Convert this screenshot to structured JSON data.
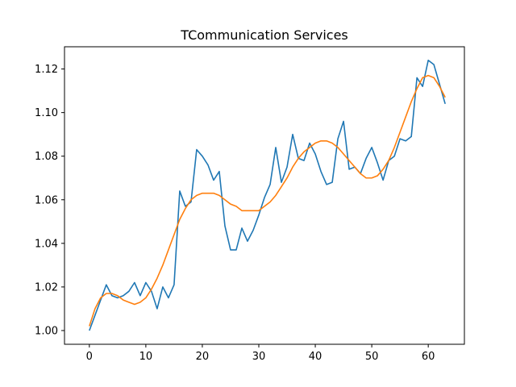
{
  "chart_data": {
    "type": "line",
    "title": "TCommunication Services",
    "xlabel": "",
    "ylabel": "",
    "xlim": [
      -4.4,
      66.4
    ],
    "ylim": [
      0.9937,
      1.1302
    ],
    "x_ticks": [
      0,
      10,
      20,
      30,
      40,
      50,
      60
    ],
    "y_ticks": [
      1.0,
      1.02,
      1.04,
      1.06,
      1.08,
      1.1,
      1.12
    ],
    "y_tick_labels": [
      "1.00",
      "1.02",
      "1.04",
      "1.06",
      "1.08",
      "1.10",
      "1.12"
    ],
    "grid": false,
    "series": [
      {
        "color": "#1f77b4",
        "x": [
          0,
          1,
          2,
          3,
          4,
          5,
          6,
          7,
          8,
          9,
          10,
          11,
          12,
          13,
          14,
          15,
          16,
          17,
          18,
          19,
          20,
          21,
          22,
          23,
          24,
          25,
          26,
          27,
          28,
          29,
          30,
          31,
          32,
          33,
          34,
          35,
          36,
          37,
          38,
          39,
          40,
          41,
          42,
          43,
          44,
          45,
          46,
          47,
          48,
          49,
          50,
          51,
          52,
          53,
          54,
          55,
          56,
          57,
          58,
          59,
          60,
          61,
          62,
          63
        ],
        "values": [
          1.0,
          1.007,
          1.014,
          1.021,
          1.016,
          1.015,
          1.016,
          1.018,
          1.022,
          1.016,
          1.022,
          1.018,
          1.01,
          1.02,
          1.015,
          1.021,
          1.064,
          1.057,
          1.059,
          1.083,
          1.08,
          1.076,
          1.069,
          1.073,
          1.048,
          1.037,
          1.037,
          1.047,
          1.041,
          1.046,
          1.053,
          1.061,
          1.067,
          1.084,
          1.068,
          1.075,
          1.09,
          1.079,
          1.078,
          1.086,
          1.081,
          1.073,
          1.067,
          1.068,
          1.088,
          1.096,
          1.074,
          1.075,
          1.072,
          1.079,
          1.084,
          1.077,
          1.069,
          1.078,
          1.08,
          1.088,
          1.087,
          1.089,
          1.116,
          1.112,
          1.124,
          1.122,
          1.113,
          1.104
        ]
      },
      {
        "color": "#ff7f0e",
        "x": [
          0,
          1,
          2,
          3,
          4,
          5,
          6,
          7,
          8,
          9,
          10,
          11,
          12,
          13,
          14,
          15,
          16,
          17,
          18,
          19,
          20,
          21,
          22,
          23,
          24,
          25,
          26,
          27,
          28,
          29,
          30,
          31,
          32,
          33,
          34,
          35,
          36,
          37,
          38,
          39,
          40,
          41,
          42,
          43,
          44,
          45,
          46,
          47,
          48,
          49,
          50,
          51,
          52,
          53,
          54,
          55,
          56,
          57,
          58,
          59,
          60,
          61,
          62,
          63
        ],
        "values": [
          1.002,
          1.01,
          1.015,
          1.017,
          1.017,
          1.016,
          1.014,
          1.013,
          1.012,
          1.013,
          1.015,
          1.019,
          1.024,
          1.03,
          1.037,
          1.044,
          1.051,
          1.056,
          1.06,
          1.062,
          1.063,
          1.063,
          1.063,
          1.062,
          1.06,
          1.058,
          1.057,
          1.055,
          1.055,
          1.055,
          1.055,
          1.057,
          1.059,
          1.062,
          1.066,
          1.07,
          1.075,
          1.079,
          1.082,
          1.084,
          1.086,
          1.087,
          1.087,
          1.086,
          1.084,
          1.081,
          1.078,
          1.075,
          1.072,
          1.07,
          1.07,
          1.071,
          1.074,
          1.078,
          1.084,
          1.091,
          1.098,
          1.105,
          1.111,
          1.116,
          1.117,
          1.116,
          1.112,
          1.107
        ]
      }
    ]
  }
}
